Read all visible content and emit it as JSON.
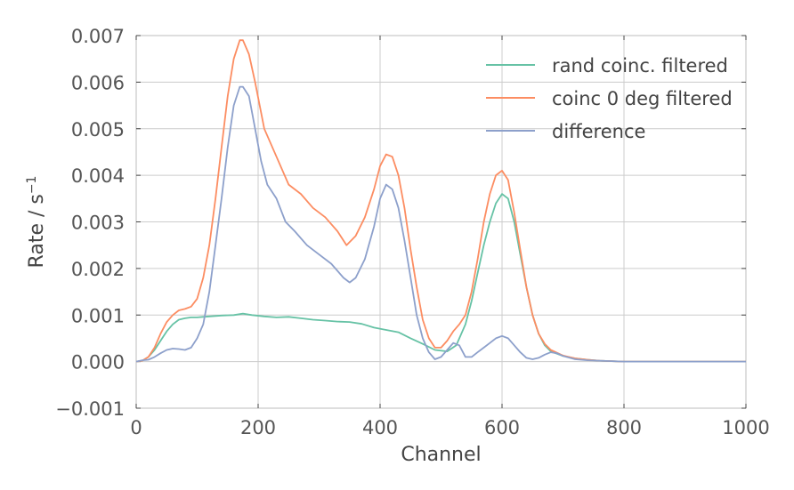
{
  "chart_data": {
    "type": "line",
    "xlabel": "Channel",
    "ylabel": "Rate / s",
    "ylabel_superscript": "−1",
    "xlim": [
      0,
      1000
    ],
    "ylim": [
      -0.001,
      0.007
    ],
    "xticks": [
      0,
      200,
      400,
      600,
      800,
      1000
    ],
    "yticks": [
      -0.001,
      0.0,
      0.001,
      0.002,
      0.003,
      0.004,
      0.005,
      0.006,
      0.007
    ],
    "xtick_labels": [
      "0",
      "200",
      "400",
      "600",
      "800",
      "1000"
    ],
    "ytick_labels": [
      "−0.001",
      "0.000",
      "0.001",
      "0.002",
      "0.003",
      "0.004",
      "0.005",
      "0.006",
      "0.007"
    ],
    "grid": true,
    "legend_position": "top-right",
    "series": [
      {
        "name": "rand coinc. filtered",
        "color": "#66c2a5",
        "x": [
          0,
          10,
          20,
          30,
          40,
          50,
          60,
          70,
          80,
          90,
          100,
          110,
          120,
          140,
          160,
          175,
          190,
          210,
          230,
          250,
          270,
          290,
          310,
          330,
          350,
          370,
          390,
          410,
          430,
          450,
          470,
          490,
          510,
          525,
          540,
          550,
          560,
          570,
          580,
          590,
          600,
          610,
          620,
          630,
          640,
          650,
          660,
          670,
          680,
          700,
          720,
          740,
          760,
          780,
          800,
          850,
          900,
          950,
          1000
        ],
        "y": [
          0.0,
          2e-05,
          0.0001,
          0.00025,
          0.00045,
          0.00065,
          0.0008,
          0.0009,
          0.00093,
          0.00095,
          0.00095,
          0.00096,
          0.00097,
          0.00099,
          0.001,
          0.00103,
          0.001,
          0.00097,
          0.00095,
          0.00096,
          0.00093,
          0.0009,
          0.00088,
          0.00086,
          0.00085,
          0.00081,
          0.00073,
          0.00068,
          0.00063,
          0.0005,
          0.00038,
          0.00025,
          0.00022,
          0.00035,
          0.0008,
          0.0013,
          0.0019,
          0.0025,
          0.003,
          0.0034,
          0.0036,
          0.0035,
          0.003,
          0.0023,
          0.0016,
          0.001,
          0.0006,
          0.00035,
          0.00022,
          0.00012,
          7e-05,
          4e-05,
          2e-05,
          1e-05,
          0.0,
          0.0,
          0.0,
          0.0,
          0.0
        ]
      },
      {
        "name": "coinc 0 deg filtered",
        "color": "#fc8d62",
        "x": [
          0,
          10,
          20,
          30,
          40,
          50,
          60,
          70,
          80,
          90,
          100,
          110,
          120,
          130,
          140,
          150,
          160,
          170,
          175,
          185,
          195,
          210,
          230,
          250,
          270,
          290,
          310,
          330,
          345,
          360,
          375,
          390,
          400,
          410,
          420,
          430,
          440,
          450,
          460,
          470,
          480,
          490,
          500,
          510,
          520,
          530,
          540,
          550,
          560,
          570,
          580,
          590,
          600,
          610,
          620,
          630,
          640,
          650,
          660,
          670,
          680,
          700,
          720,
          740,
          760,
          780,
          800,
          850,
          900,
          950,
          1000
        ],
        "y": [
          0.0,
          2e-05,
          0.0001,
          0.0003,
          0.0006,
          0.00085,
          0.001,
          0.0011,
          0.00113,
          0.00118,
          0.00135,
          0.0018,
          0.0025,
          0.0035,
          0.0046,
          0.0057,
          0.0065,
          0.0069,
          0.0069,
          0.0066,
          0.006,
          0.005,
          0.0044,
          0.0038,
          0.0036,
          0.0033,
          0.0031,
          0.0028,
          0.0025,
          0.0027,
          0.0031,
          0.0037,
          0.0042,
          0.00445,
          0.0044,
          0.004,
          0.0033,
          0.0024,
          0.0016,
          0.0009,
          0.0005,
          0.0003,
          0.0003,
          0.00045,
          0.00065,
          0.0008,
          0.001,
          0.0015,
          0.0022,
          0.003,
          0.0036,
          0.004,
          0.0041,
          0.0039,
          0.0032,
          0.0024,
          0.0016,
          0.001,
          0.0006,
          0.00038,
          0.00025,
          0.00013,
          7e-05,
          4e-05,
          2e-05,
          1e-05,
          0.0,
          0.0,
          0.0,
          0.0,
          0.0
        ]
      },
      {
        "name": "difference",
        "color": "#8da0cb",
        "x": [
          0,
          10,
          20,
          30,
          40,
          50,
          60,
          70,
          80,
          90,
          100,
          110,
          120,
          130,
          140,
          150,
          160,
          170,
          175,
          185,
          195,
          205,
          215,
          230,
          245,
          260,
          280,
          300,
          320,
          340,
          350,
          360,
          375,
          390,
          400,
          410,
          420,
          430,
          440,
          450,
          460,
          470,
          480,
          490,
          500,
          510,
          520,
          530,
          540,
          550,
          560,
          570,
          580,
          590,
          600,
          610,
          620,
          630,
          640,
          650,
          660,
          670,
          680,
          690,
          700,
          720,
          740,
          760,
          780,
          800,
          850,
          900,
          950,
          1000
        ],
        "y": [
          0.0,
          3e-05,
          4e-05,
          0.0001,
          0.00018,
          0.00025,
          0.00028,
          0.00027,
          0.00025,
          0.0003,
          0.0005,
          0.0008,
          0.0015,
          0.0025,
          0.0035,
          0.0046,
          0.0055,
          0.0059,
          0.0059,
          0.0057,
          0.005,
          0.0043,
          0.0038,
          0.0035,
          0.003,
          0.0028,
          0.0025,
          0.0023,
          0.0021,
          0.0018,
          0.0017,
          0.0018,
          0.0022,
          0.0029,
          0.0035,
          0.0038,
          0.0037,
          0.0033,
          0.0026,
          0.0018,
          0.001,
          0.0005,
          0.0002,
          5e-05,
          0.0001,
          0.00025,
          0.0004,
          0.00035,
          0.0001,
          0.0001,
          0.0002,
          0.0003,
          0.0004,
          0.0005,
          0.00055,
          0.0005,
          0.00035,
          0.0002,
          8e-05,
          5e-05,
          8e-05,
          0.00015,
          0.0002,
          0.00018,
          0.00012,
          5e-05,
          3e-05,
          2e-05,
          1e-05,
          0.0,
          0.0,
          0.0,
          0.0,
          0.0
        ]
      }
    ]
  }
}
